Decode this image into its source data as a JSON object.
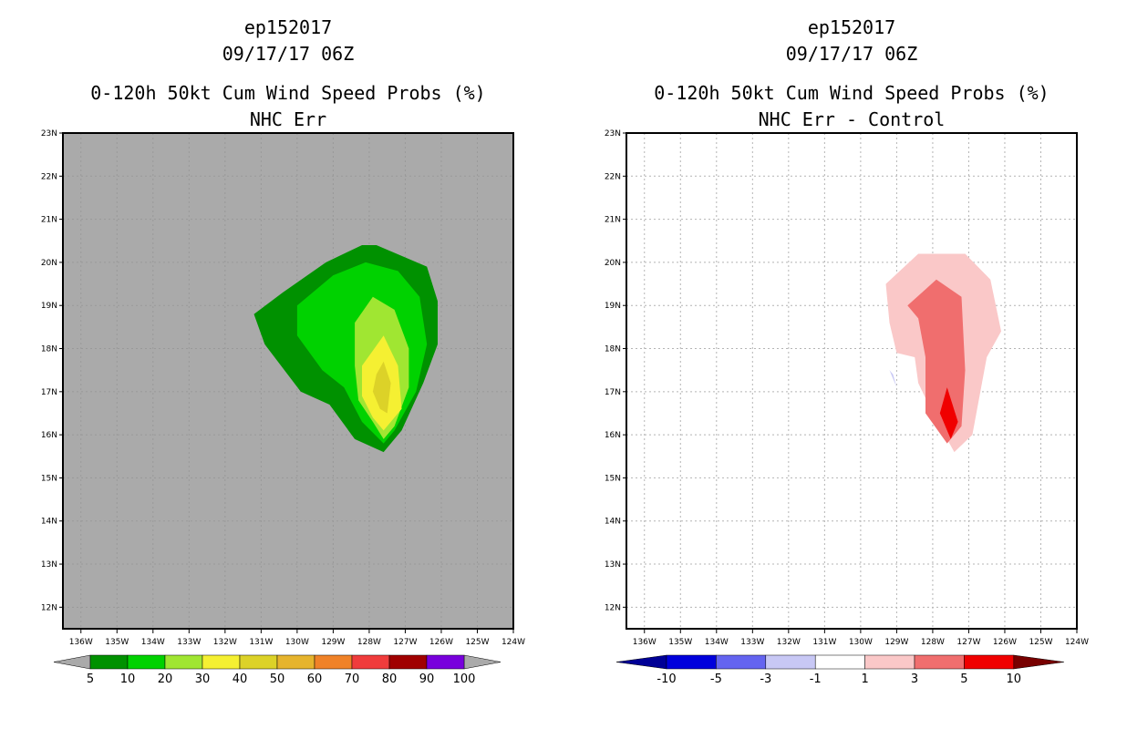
{
  "panels": [
    {
      "storm_id": "ep152017",
      "datetime": "09/17/17 06Z",
      "title": "0-120h 50kt Cum Wind Speed Probs (%)",
      "subtitle": "NHC Err"
    },
    {
      "storm_id": "ep152017",
      "datetime": "09/17/17 06Z",
      "title": "0-120h 50kt Cum Wind Speed Probs (%)",
      "subtitle": "NHC Err - Control"
    }
  ],
  "chart_data": [
    {
      "type": "contour-map",
      "title": "0-120h 50kt Cum Wind Speed Probs (%)",
      "subtitle": "NHC Err",
      "background_color": "#aaaaaa",
      "lon_range": [
        -136.5,
        -124
      ],
      "lat_range": [
        11.5,
        23
      ],
      "x_ticks": [
        "136W",
        "135W",
        "134W",
        "133W",
        "132W",
        "131W",
        "130W",
        "129W",
        "128W",
        "127W",
        "126W",
        "125W",
        "124W"
      ],
      "y_ticks": [
        "12N",
        "13N",
        "14N",
        "15N",
        "16N",
        "17N",
        "18N",
        "19N",
        "20N",
        "21N",
        "22N",
        "23N"
      ],
      "colorbar": {
        "levels": [
          "5",
          "10",
          "20",
          "30",
          "40",
          "50",
          "60",
          "70",
          "80",
          "90",
          "100"
        ],
        "colors": [
          "#009100",
          "#00d200",
          "#a0e632",
          "#f5f032",
          "#dcd228",
          "#e6b42d",
          "#f08228",
          "#f03c3c",
          "#a00000",
          "#7800dc"
        ],
        "extend_color": "#aaaaaa"
      },
      "contours": [
        {
          "level": 5,
          "color": "#009100",
          "points": [
            [
              -129.2,
              20.0
            ],
            [
              -128.2,
              20.4
            ],
            [
              -127.8,
              20.4
            ],
            [
              -126.4,
              19.9
            ],
            [
              -126.1,
              19.1
            ],
            [
              -126.1,
              18.1
            ],
            [
              -126.5,
              17.2
            ],
            [
              -127.1,
              16.1
            ],
            [
              -127.6,
              15.6
            ],
            [
              -128.4,
              15.9
            ],
            [
              -129.1,
              16.7
            ],
            [
              -129.9,
              17.0
            ],
            [
              -130.9,
              18.1
            ],
            [
              -131.2,
              18.8
            ],
            [
              -130.4,
              19.3
            ]
          ]
        },
        {
          "level": 10,
          "color": "#00d200",
          "points": [
            [
              -129.0,
              19.7
            ],
            [
              -128.1,
              20.0
            ],
            [
              -127.2,
              19.8
            ],
            [
              -126.6,
              19.2
            ],
            [
              -126.4,
              18.1
            ],
            [
              -126.7,
              17.0
            ],
            [
              -127.3,
              16.1
            ],
            [
              -127.6,
              15.8
            ],
            [
              -128.2,
              16.3
            ],
            [
              -128.7,
              17.1
            ],
            [
              -129.3,
              17.5
            ],
            [
              -130.0,
              18.3
            ],
            [
              -130.0,
              19.0
            ]
          ]
        },
        {
          "level": 20,
          "color": "#a0e632",
          "points": [
            [
              -127.9,
              19.2
            ],
            [
              -127.3,
              18.9
            ],
            [
              -126.9,
              18.0
            ],
            [
              -126.9,
              17.1
            ],
            [
              -127.3,
              16.2
            ],
            [
              -127.6,
              15.9
            ],
            [
              -127.9,
              16.3
            ],
            [
              -128.3,
              16.8
            ],
            [
              -128.4,
              17.6
            ],
            [
              -128.4,
              18.6
            ]
          ]
        },
        {
          "level": 30,
          "color": "#f5f032",
          "points": [
            [
              -127.6,
              18.3
            ],
            [
              -127.2,
              17.6
            ],
            [
              -127.1,
              16.6
            ],
            [
              -127.6,
              16.1
            ],
            [
              -127.9,
              16.4
            ],
            [
              -128.2,
              16.9
            ],
            [
              -128.2,
              17.6
            ]
          ]
        },
        {
          "level": 40,
          "color": "#dcd228",
          "points": [
            [
              -127.6,
              17.7
            ],
            [
              -127.4,
              17.2
            ],
            [
              -127.5,
              16.5
            ],
            [
              -127.7,
              16.6
            ],
            [
              -127.9,
              17.0
            ],
            [
              -127.8,
              17.4
            ]
          ]
        }
      ]
    },
    {
      "type": "contour-map",
      "title": "0-120h 50kt Cum Wind Speed Probs (%)",
      "subtitle": "NHC Err - Control",
      "background_color": "#ffffff",
      "lon_range": [
        -136.5,
        -124
      ],
      "lat_range": [
        11.5,
        23
      ],
      "x_ticks": [
        "136W",
        "135W",
        "134W",
        "133W",
        "132W",
        "131W",
        "130W",
        "129W",
        "128W",
        "127W",
        "126W",
        "125W",
        "124W"
      ],
      "y_ticks": [
        "12N",
        "13N",
        "14N",
        "15N",
        "16N",
        "17N",
        "18N",
        "19N",
        "20N",
        "21N",
        "22N",
        "23N"
      ],
      "colorbar": {
        "levels": [
          "-10",
          "-5",
          "-3",
          "-1",
          "1",
          "3",
          "5",
          "10"
        ],
        "colors": [
          "#0000dc",
          "#6464f0",
          "#c8c8f5",
          "#ffffff",
          "#fac8c8",
          "#f06e6e",
          "#f00000"
        ],
        "extend_low": "#000096",
        "extend_high": "#780000"
      },
      "contours": [
        {
          "level": 1,
          "color": "#fac8c8",
          "points": [
            [
              -129.3,
              19.5
            ],
            [
              -128.4,
              20.2
            ],
            [
              -127.1,
              20.2
            ],
            [
              -126.4,
              19.6
            ],
            [
              -126.1,
              18.4
            ],
            [
              -126.5,
              17.8
            ],
            [
              -126.9,
              16.0
            ],
            [
              -127.4,
              15.6
            ],
            [
              -128.0,
              16.5
            ],
            [
              -128.4,
              17.2
            ],
            [
              -128.5,
              17.8
            ],
            [
              -129.0,
              17.9
            ],
            [
              -129.2,
              18.6
            ]
          ]
        },
        {
          "level": 3,
          "color": "#f06e6e",
          "points": [
            [
              -128.7,
              19.0
            ],
            [
              -127.9,
              19.6
            ],
            [
              -127.2,
              19.2
            ],
            [
              -127.1,
              17.5
            ],
            [
              -127.2,
              16.2
            ],
            [
              -127.6,
              15.8
            ],
            [
              -128.2,
              16.5
            ],
            [
              -128.2,
              17.8
            ],
            [
              -128.4,
              18.7
            ]
          ]
        },
        {
          "level": 5,
          "color": "#f00000",
          "points": [
            [
              -127.6,
              17.1
            ],
            [
              -127.3,
              16.3
            ],
            [
              -127.5,
              15.9
            ],
            [
              -127.8,
              16.5
            ]
          ]
        },
        {
          "level": -1,
          "color": "#c8c8f5",
          "points": [
            [
              -129.2,
              17.5
            ],
            [
              -129.0,
              17.1
            ],
            [
              -129.1,
              17.4
            ]
          ]
        }
      ]
    }
  ]
}
